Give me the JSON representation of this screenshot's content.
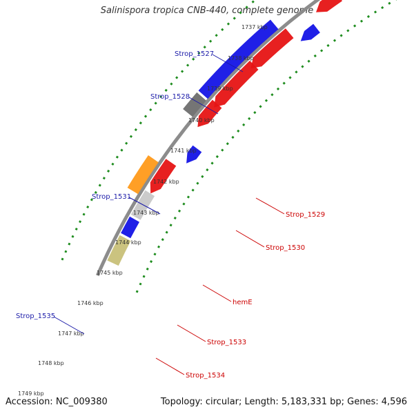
{
  "title": "Salinispora tropica CNB-440, complete genome",
  "accession": "Accession: NC_009380",
  "summary": "Topology: circular; Length: 5,183,331 bp; Genes: 4,596",
  "colors": {
    "forward_label": "#cc0000",
    "reverse_label": "#1a1aa8",
    "backbone": "#8c8c8c",
    "dotted_ring": "#1e8c1e",
    "blue": "#1414e6",
    "red": "#e61414",
    "purple": "#7a6ad8",
    "pink": "#f08080",
    "olive": "#c8c078",
    "orange": "#ff9a1a",
    "gray": "#6e6e6e",
    "lightgray": "#c8c8c8"
  },
  "ticks": [
    {
      "label": "1737 kbp"
    },
    {
      "label": "1738 kbp"
    },
    {
      "label": "1739 kbp"
    },
    {
      "label": "1740 kbp"
    },
    {
      "label": "1741 kbp"
    },
    {
      "label": "1742 kbp"
    },
    {
      "label": "1743 kbp"
    },
    {
      "label": "1744 kbp"
    },
    {
      "label": "1745 kbp"
    },
    {
      "label": "1746 kbp"
    },
    {
      "label": "1747 kbp"
    },
    {
      "label": "1748 kbp"
    },
    {
      "label": "1749 kbp"
    }
  ],
  "gene_labels": [
    {
      "text": "Strop_1527",
      "strand": "reverse"
    },
    {
      "text": "Strop_1528",
      "strand": "reverse"
    },
    {
      "text": "Strop_1531",
      "strand": "reverse"
    },
    {
      "text": "Strop_1535",
      "strand": "reverse"
    },
    {
      "text": "Strop_1529",
      "strand": "forward"
    },
    {
      "text": "Strop_1530",
      "strand": "forward"
    },
    {
      "text": "hemE",
      "strand": "forward"
    },
    {
      "text": "Strop_1533",
      "strand": "forward"
    },
    {
      "text": "Strop_1534",
      "strand": "forward"
    }
  ]
}
